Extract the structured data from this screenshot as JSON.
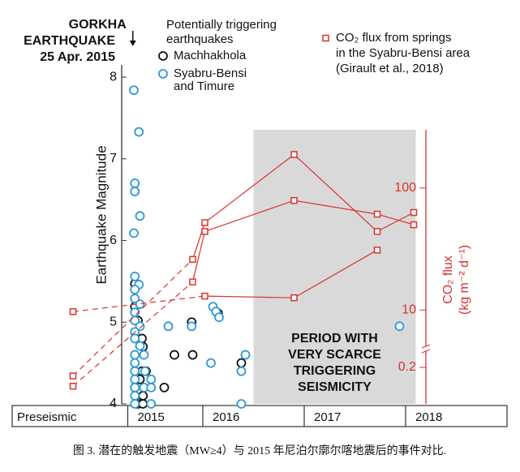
{
  "chart_data": {
    "type": "scatter",
    "y_label": "Earthquake Magnitude",
    "y2_label": [
      "CO₂ flux",
      "(kg m⁻² d⁻¹)"
    ],
    "caption": "图 3. 潜在的触发地震（MW≥4）与 2015 年尼泊尔廓尔喀地震后的事件对比.",
    "event": {
      "x": 2015.31,
      "label": [
        "GORKHA",
        "EARTHQUAKE",
        "25 Apr. 2015"
      ]
    },
    "legend_title": [
      "Potentially triggering",
      "earthquakes"
    ],
    "co2_legend": [
      "CO₂ flux from springs",
      "in the Syabru-Bensi area",
      "(Girault et al., 2018)"
    ],
    "shaded_period": [
      2016.5,
      2018.1
    ],
    "annotation": [
      "PERIOD WITH",
      "VERY SCARCE",
      "TRIGGERING",
      "SEISMICITY"
    ],
    "xlim": [
      2014.12,
      2019.0
    ],
    "bands": [
      {
        "label": "Preseismic",
        "from": 2014.12
      },
      {
        "label": "2015",
        "from": 2015.26
      },
      {
        "label": "2016",
        "from": 2016.0
      },
      {
        "label": "2017",
        "from": 2017.0
      },
      {
        "label": "2018",
        "from": 2018.0
      }
    ],
    "ylim": [
      4,
      8.15
    ],
    "yticks": [
      4,
      5,
      6,
      7,
      8
    ],
    "y2lim": [
      0.1,
      300
    ],
    "y2_break": [
      0.264,
      5.2
    ],
    "y2log": true,
    "y2ticks": [
      0.2,
      10,
      100
    ],
    "series": [
      {
        "name": "Machhakhola",
        "color": "#111111",
        "marker": "circle",
        "x": [
          2015.33,
          2015.33,
          2015.36,
          2015.4,
          2015.41,
          2015.4,
          2015.44,
          2015.38,
          2015.33,
          2015.41,
          2015.36,
          2015.41,
          2015.62,
          2015.72,
          2015.9,
          2015.89,
          2016.15,
          2016.38
        ],
        "values": [
          5.47,
          5.19,
          5.02,
          4.8,
          4.7,
          4.4,
          4.4,
          4.3,
          4.2,
          4.1,
          4.0,
          4.0,
          4.2,
          4.6,
          4.6,
          5.0,
          5.11,
          4.5
        ]
      },
      {
        "name": "Syabru-Bensi and Timure",
        "color": "#2b9ad3",
        "marker": "circle",
        "x": [
          2015.32,
          2015.37,
          2015.33,
          2015.33,
          2015.38,
          2015.32,
          2015.33,
          2015.37,
          2015.33,
          2015.33,
          2015.38,
          2015.33,
          2015.33,
          2015.38,
          2015.33,
          2015.33,
          2015.38,
          2015.33,
          2015.42,
          2015.33,
          2015.33,
          2015.43,
          2015.33,
          2015.49,
          2015.33,
          2015.42,
          2015.49,
          2015.33,
          2015.33,
          2015.49,
          2015.66,
          2015.89,
          2016.1,
          2016.13,
          2016.16,
          2016.08,
          2016.38,
          2016.42,
          2016.38,
          2017.94
        ],
        "values": [
          7.84,
          7.33,
          6.7,
          6.6,
          6.3,
          6.09,
          5.56,
          5.46,
          5.4,
          5.29,
          5.22,
          5.12,
          5.02,
          4.95,
          4.88,
          4.8,
          4.71,
          4.6,
          4.6,
          4.5,
          4.4,
          4.4,
          4.3,
          4.3,
          4.2,
          4.2,
          4.2,
          4.1,
          4.0,
          4.0,
          4.95,
          4.95,
          5.19,
          5.13,
          5.06,
          4.5,
          4.4,
          4.6,
          4.0,
          4.95
        ]
      },
      {
        "type": "line",
        "axis": "y2",
        "color": "#d8322d",
        "marker": "square",
        "x": [
          2014.72,
          2016.02,
          2016.9,
          2017.72
        ],
        "values": [
          9.7,
          13,
          12.6,
          31
        ]
      },
      {
        "type": "line",
        "axis": "y2",
        "color": "#d8322d",
        "marker": "square",
        "x": [
          2014.72,
          2015.9,
          2016.02,
          2016.9,
          2017.72,
          2018.08
        ],
        "values": [
          0.17,
          26,
          52,
          188,
          44,
          63
        ]
      },
      {
        "type": "line",
        "axis": "y2",
        "color": "#d8322d",
        "marker": "square",
        "x": [
          2014.72,
          2015.9,
          2016.02,
          2016.9,
          2017.72,
          2018.08
        ],
        "values": [
          0.14,
          17,
          44,
          79,
          61,
          50
        ]
      }
    ]
  }
}
